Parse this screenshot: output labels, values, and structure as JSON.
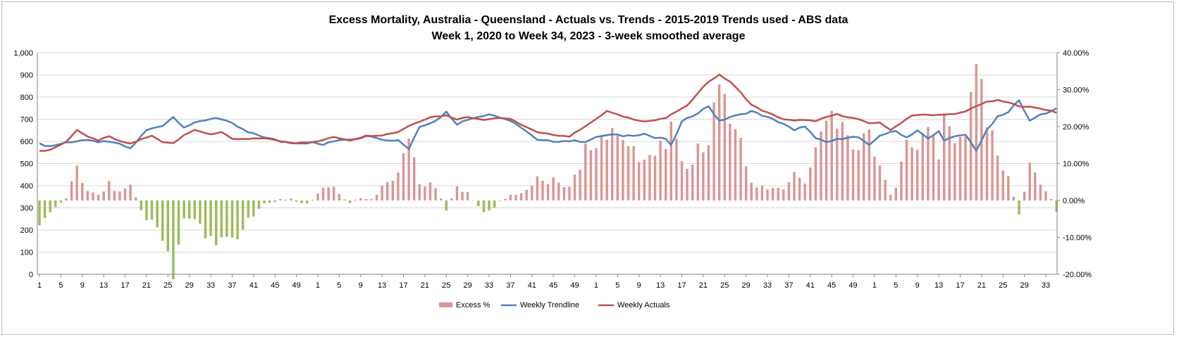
{
  "chart_data": {
    "type": "bar-line-combo",
    "title": "Excess Mortality, Australia - Queensland - Actuals vs. Trends - 2015-2019 Trends used - ABS data",
    "subtitle": "Week 1, 2020 to Week 34, 2023 - 3-week smoothed average",
    "y_left": {
      "min": 0,
      "max": 1000,
      "step": 100,
      "ticks": [
        "0",
        "100",
        "200",
        "300",
        "400",
        "500",
        "600",
        "700",
        "800",
        "900",
        "1,000"
      ]
    },
    "y_right": {
      "min": -0.2,
      "max": 0.4,
      "step": 0.1,
      "ticks": [
        "-20.00%",
        "-10.00%",
        "0.00%",
        "10.00%",
        "20.00%",
        "30.00%",
        "40.00%"
      ]
    },
    "x_tick_labels": [
      "1",
      "5",
      "9",
      "13",
      "17",
      "21",
      "25",
      "29",
      "33",
      "37",
      "41",
      "45",
      "49",
      "1",
      "5",
      "9",
      "13",
      "17",
      "21",
      "25",
      "29",
      "33",
      "37",
      "41",
      "45",
      "49",
      "1",
      "5",
      "9",
      "13",
      "17",
      "21",
      "25",
      "29",
      "33",
      "37",
      "41",
      "45",
      "49",
      "1",
      "5",
      "9",
      "13",
      "17",
      "21",
      "25",
      "29",
      "33"
    ],
    "x_tick_weeks": [
      1,
      5,
      9,
      13,
      17,
      21,
      25,
      29,
      33,
      37,
      41,
      45,
      49,
      53,
      57,
      61,
      65,
      69,
      73,
      77,
      81,
      85,
      89,
      93,
      97,
      101,
      105,
      109,
      113,
      117,
      121,
      125,
      129,
      133,
      137,
      141,
      145,
      149,
      153,
      157,
      161,
      165,
      169,
      173,
      177,
      181,
      185,
      189
    ],
    "legend_position": "bottom",
    "grid": true,
    "colors": {
      "excess_positive": "#d99694",
      "excess_negative": "#9bbb59",
      "trendline": "#4f81bd",
      "actuals": "#c0504d"
    },
    "weeks": 191,
    "trend_knots": [
      [
        1,
        588
      ],
      [
        3,
        578
      ],
      [
        6,
        595
      ],
      [
        9,
        605
      ],
      [
        12,
        598
      ],
      [
        15,
        595
      ],
      [
        18,
        568
      ],
      [
        21,
        650
      ],
      [
        24,
        672
      ],
      [
        26,
        710
      ],
      [
        28,
        665
      ],
      [
        31,
        690
      ],
      [
        34,
        708
      ],
      [
        37,
        680
      ],
      [
        40,
        640
      ],
      [
        43,
        620
      ],
      [
        46,
        600
      ],
      [
        48,
        594
      ],
      [
        51,
        598
      ],
      [
        54,
        585
      ],
      [
        57,
        608
      ],
      [
        60,
        612
      ],
      [
        63,
        626
      ],
      [
        66,
        603
      ],
      [
        68,
        607
      ],
      [
        70,
        566
      ],
      [
        72,
        668
      ],
      [
        75,
        692
      ],
      [
        77,
        733
      ],
      [
        79,
        679
      ],
      [
        82,
        707
      ],
      [
        85,
        723
      ],
      [
        88,
        701
      ],
      [
        91,
        664
      ],
      [
        94,
        605
      ],
      [
        97,
        601
      ],
      [
        100,
        602
      ],
      [
        103,
        600
      ],
      [
        106,
        625
      ],
      [
        108,
        630
      ],
      [
        110,
        625
      ],
      [
        112,
        628
      ],
      [
        114,
        635
      ],
      [
        116,
        615
      ],
      [
        118,
        612
      ],
      [
        119,
        580
      ],
      [
        121,
        688
      ],
      [
        124,
        730
      ],
      [
        126,
        760
      ],
      [
        128,
        690
      ],
      [
        130,
        710
      ],
      [
        132,
        720
      ],
      [
        134,
        737
      ],
      [
        137,
        708
      ],
      [
        140,
        680
      ],
      [
        142,
        648
      ],
      [
        144,
        670
      ],
      [
        146,
        612
      ],
      [
        148,
        596
      ],
      [
        150,
        608
      ],
      [
        152,
        620
      ],
      [
        154,
        618
      ],
      [
        156,
        580
      ],
      [
        158,
        628
      ],
      [
        161,
        646
      ],
      [
        163,
        618
      ],
      [
        165,
        650
      ],
      [
        167,
        611
      ],
      [
        169,
        645
      ],
      [
        170,
        607
      ],
      [
        172,
        620
      ],
      [
        174,
        630
      ],
      [
        176,
        560
      ],
      [
        178,
        650
      ],
      [
        180,
        710
      ],
      [
        182,
        730
      ],
      [
        184,
        790
      ],
      [
        186,
        690
      ],
      [
        188,
        722
      ],
      [
        190,
        735
      ],
      [
        191,
        752
      ]
    ],
    "actual_knots": [
      [
        1,
        556
      ],
      [
        3,
        562
      ],
      [
        6,
        598
      ],
      [
        8,
        652
      ],
      [
        10,
        620
      ],
      [
        12,
        605
      ],
      [
        14,
        622
      ],
      [
        16,
        600
      ],
      [
        18,
        590
      ],
      [
        20,
        609
      ],
      [
        22,
        625
      ],
      [
        24,
        598
      ],
      [
        26,
        592
      ],
      [
        28,
        630
      ],
      [
        30,
        650
      ],
      [
        33,
        632
      ],
      [
        35,
        642
      ],
      [
        37,
        610
      ],
      [
        40,
        610
      ],
      [
        43,
        615
      ],
      [
        46,
        601
      ],
      [
        49,
        592
      ],
      [
        51,
        592
      ],
      [
        53,
        600
      ],
      [
        56,
        620
      ],
      [
        59,
        605
      ],
      [
        62,
        625
      ],
      [
        65,
        628
      ],
      [
        68,
        643
      ],
      [
        70,
        670
      ],
      [
        72,
        690
      ],
      [
        74,
        710
      ],
      [
        77,
        717
      ],
      [
        79,
        700
      ],
      [
        81,
        710
      ],
      [
        84,
        698
      ],
      [
        87,
        707
      ],
      [
        89,
        700
      ],
      [
        91,
        676
      ],
      [
        94,
        640
      ],
      [
        97,
        630
      ],
      [
        100,
        622
      ],
      [
        103,
        670
      ],
      [
        105,
        700
      ],
      [
        107,
        737
      ],
      [
        109,
        720
      ],
      [
        112,
        700
      ],
      [
        114,
        690
      ],
      [
        116,
        695
      ],
      [
        118,
        705
      ],
      [
        120,
        735
      ],
      [
        122,
        760
      ],
      [
        124,
        820
      ],
      [
        126,
        870
      ],
      [
        128,
        900
      ],
      [
        130,
        870
      ],
      [
        132,
        820
      ],
      [
        134,
        765
      ],
      [
        136,
        740
      ],
      [
        138,
        720
      ],
      [
        140,
        700
      ],
      [
        142,
        693
      ],
      [
        144,
        698
      ],
      [
        146,
        690
      ],
      [
        148,
        710
      ],
      [
        150,
        722
      ],
      [
        152,
        710
      ],
      [
        154,
        700
      ],
      [
        156,
        680
      ],
      [
        158,
        686
      ],
      [
        160,
        650
      ],
      [
        162,
        685
      ],
      [
        164,
        718
      ],
      [
        166,
        720
      ],
      [
        168,
        718
      ],
      [
        170,
        722
      ],
      [
        172,
        722
      ],
      [
        174,
        735
      ],
      [
        176,
        760
      ],
      [
        178,
        778
      ],
      [
        180,
        785
      ],
      [
        182,
        775
      ],
      [
        184,
        760
      ],
      [
        186,
        755
      ],
      [
        188,
        748
      ],
      [
        190,
        738
      ],
      [
        191,
        730
      ]
    ]
  },
  "legend": [
    {
      "label": "Excess %",
      "kind": "bar",
      "color": "#d99694"
    },
    {
      "label": "Weekly Trendline",
      "kind": "line",
      "color": "#4f81bd"
    },
    {
      "label": "Weekly Actuals",
      "kind": "line",
      "color": "#c0504d"
    }
  ]
}
